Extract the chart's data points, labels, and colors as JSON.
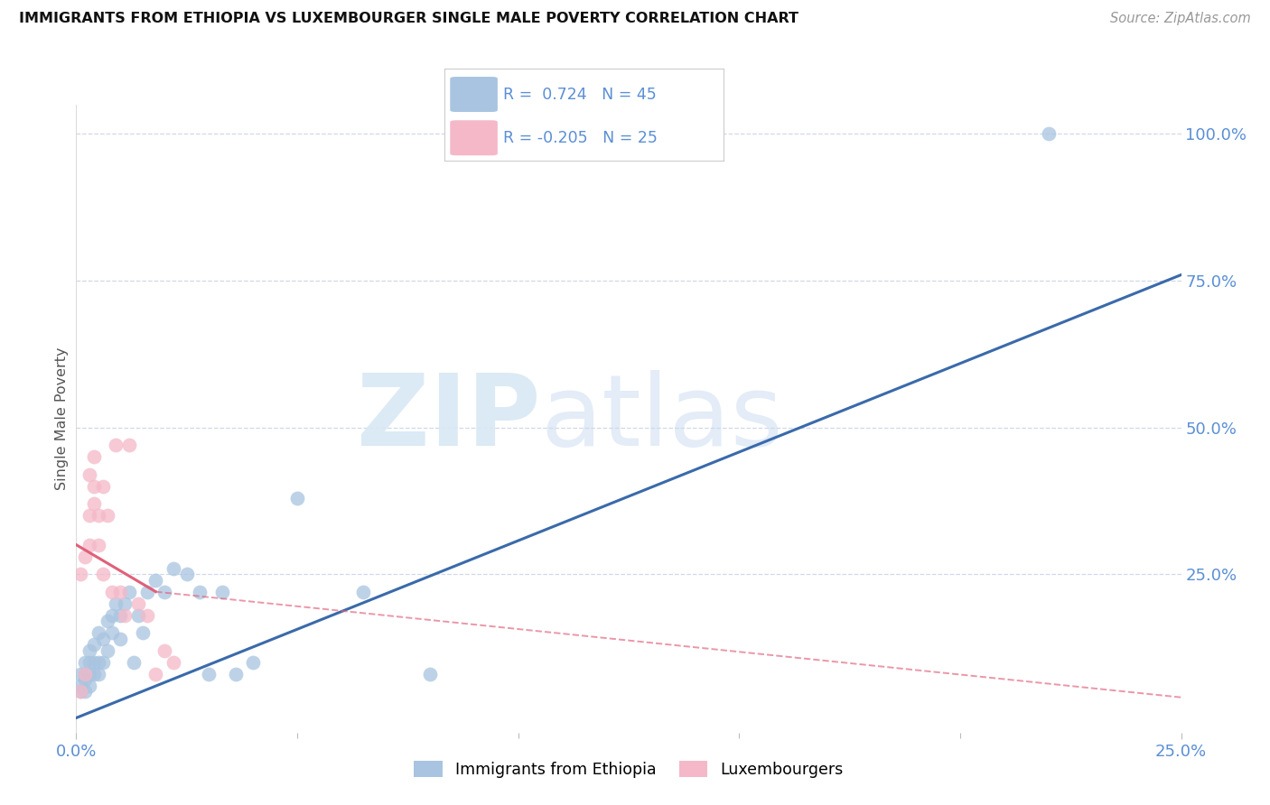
{
  "title": "IMMIGRANTS FROM ETHIOPIA VS LUXEMBOURGER SINGLE MALE POVERTY CORRELATION CHART",
  "source": "Source: ZipAtlas.com",
  "ylabel": "Single Male Poverty",
  "xlim": [
    0.0,
    0.25
  ],
  "ylim": [
    -0.02,
    1.05
  ],
  "blue_r": "0.724",
  "blue_n": "45",
  "pink_r": "-0.205",
  "pink_n": "25",
  "blue_color": "#a8c4e0",
  "pink_color": "#f4b8c8",
  "blue_line_color": "#3a6aaa",
  "pink_line_color": "#e0607a",
  "tick_color": "#5b8fd4",
  "grid_color": "#d0d8e8",
  "blue_scatter_x": [
    0.001,
    0.001,
    0.001,
    0.002,
    0.002,
    0.002,
    0.002,
    0.003,
    0.003,
    0.003,
    0.003,
    0.004,
    0.004,
    0.004,
    0.005,
    0.005,
    0.005,
    0.006,
    0.006,
    0.007,
    0.007,
    0.008,
    0.008,
    0.009,
    0.01,
    0.01,
    0.011,
    0.012,
    0.013,
    0.014,
    0.015,
    0.016,
    0.018,
    0.02,
    0.022,
    0.025,
    0.028,
    0.03,
    0.033,
    0.036,
    0.04,
    0.05,
    0.065,
    0.08,
    0.22
  ],
  "blue_scatter_y": [
    0.05,
    0.06,
    0.08,
    0.05,
    0.07,
    0.08,
    0.1,
    0.06,
    0.08,
    0.1,
    0.12,
    0.08,
    0.1,
    0.13,
    0.08,
    0.1,
    0.15,
    0.1,
    0.14,
    0.12,
    0.17,
    0.15,
    0.18,
    0.2,
    0.14,
    0.18,
    0.2,
    0.22,
    0.1,
    0.18,
    0.15,
    0.22,
    0.24,
    0.22,
    0.26,
    0.25,
    0.22,
    0.08,
    0.22,
    0.08,
    0.1,
    0.38,
    0.22,
    0.08,
    1.0
  ],
  "pink_scatter_x": [
    0.001,
    0.001,
    0.002,
    0.002,
    0.003,
    0.003,
    0.003,
    0.004,
    0.004,
    0.004,
    0.005,
    0.005,
    0.006,
    0.006,
    0.007,
    0.008,
    0.009,
    0.01,
    0.011,
    0.012,
    0.014,
    0.016,
    0.018,
    0.02,
    0.022
  ],
  "pink_scatter_y": [
    0.05,
    0.25,
    0.08,
    0.28,
    0.3,
    0.35,
    0.42,
    0.37,
    0.4,
    0.45,
    0.3,
    0.35,
    0.4,
    0.25,
    0.35,
    0.22,
    0.47,
    0.22,
    0.18,
    0.47,
    0.2,
    0.18,
    0.08,
    0.12,
    0.1
  ],
  "blue_line_x": [
    0.0,
    0.25
  ],
  "blue_line_y": [
    0.005,
    0.76
  ],
  "pink_solid_line_x": [
    0.0,
    0.018
  ],
  "pink_solid_line_y": [
    0.3,
    0.22
  ],
  "pink_dashed_line_x": [
    0.018,
    0.25
  ],
  "pink_dashed_line_y": [
    0.22,
    0.04
  ]
}
